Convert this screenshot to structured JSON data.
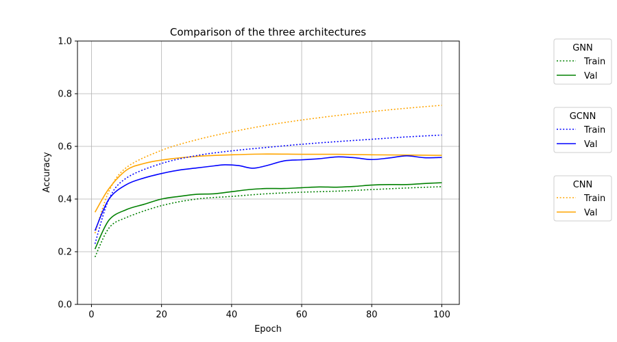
{
  "chart_data": {
    "type": "line",
    "title": "Comparison of the three architectures",
    "xlabel": "Epoch",
    "ylabel": "Accuracy",
    "xlim": [
      -4,
      105
    ],
    "ylim": [
      0.0,
      1.0
    ],
    "xticks": [
      0,
      20,
      40,
      60,
      80,
      100
    ],
    "yticks": [
      0.0,
      0.2,
      0.4,
      0.6,
      0.8,
      1.0
    ],
    "xtick_labels": [
      "0",
      "20",
      "40",
      "60",
      "80",
      "100"
    ],
    "ytick_labels": [
      "0.0",
      "0.2",
      "0.4",
      "0.6",
      "0.8",
      "1.0"
    ],
    "grid": true,
    "legend_placement": "right, outside plot",
    "legends": [
      {
        "title": "GNN",
        "entries": [
          {
            "label": "Train",
            "color": "#008000",
            "style": "dotted"
          },
          {
            "label": "Val",
            "color": "#008000",
            "style": "solid"
          }
        ]
      },
      {
        "title": "GCNN",
        "entries": [
          {
            "label": "Train",
            "color": "#0000ff",
            "style": "dotted"
          },
          {
            "label": "Val",
            "color": "#0000ff",
            "style": "solid"
          }
        ]
      },
      {
        "title": "CNN",
        "entries": [
          {
            "label": "Train",
            "color": "#ffa500",
            "style": "dotted"
          },
          {
            "label": "Val",
            "color": "#ffa500",
            "style": "solid"
          }
        ]
      }
    ],
    "series": [
      {
        "group": "CNN",
        "name": "Train",
        "color": "#ffa500",
        "style": "dotted",
        "x": [
          1,
          5,
          10,
          20,
          30,
          40,
          50,
          60,
          70,
          80,
          90,
          100
        ],
        "y": [
          0.27,
          0.43,
          0.52,
          0.585,
          0.625,
          0.655,
          0.68,
          0.7,
          0.717,
          0.732,
          0.745,
          0.756
        ]
      },
      {
        "group": "CNN",
        "name": "Val",
        "color": "#ffa500",
        "style": "solid",
        "x": [
          1,
          5,
          10,
          15,
          20,
          30,
          40,
          50,
          60,
          70,
          80,
          90,
          100
        ],
        "y": [
          0.35,
          0.44,
          0.51,
          0.535,
          0.548,
          0.562,
          0.568,
          0.571,
          0.57,
          0.57,
          0.568,
          0.567,
          0.566
        ]
      },
      {
        "group": "GCNN",
        "name": "Train",
        "color": "#0000ff",
        "style": "dotted",
        "x": [
          1,
          5,
          10,
          20,
          30,
          40,
          50,
          60,
          70,
          80,
          90,
          100
        ],
        "y": [
          0.23,
          0.4,
          0.48,
          0.535,
          0.565,
          0.583,
          0.596,
          0.608,
          0.618,
          0.627,
          0.636,
          0.643
        ]
      },
      {
        "group": "GCNN",
        "name": "Val",
        "color": "#0000ff",
        "style": "solid",
        "x": [
          1,
          5,
          10,
          15,
          20,
          25,
          30,
          35,
          38,
          42,
          46,
          50,
          55,
          60,
          65,
          70,
          75,
          80,
          85,
          90,
          95,
          100
        ],
        "y": [
          0.28,
          0.4,
          0.455,
          0.48,
          0.497,
          0.51,
          0.518,
          0.526,
          0.53,
          0.527,
          0.517,
          0.527,
          0.545,
          0.549,
          0.553,
          0.56,
          0.557,
          0.55,
          0.556,
          0.564,
          0.557,
          0.558
        ]
      },
      {
        "group": "GNN",
        "name": "Train",
        "color": "#008000",
        "style": "dotted",
        "x": [
          1,
          5,
          10,
          20,
          30,
          40,
          50,
          60,
          70,
          80,
          90,
          100
        ],
        "y": [
          0.18,
          0.29,
          0.33,
          0.375,
          0.4,
          0.41,
          0.42,
          0.426,
          0.43,
          0.436,
          0.442,
          0.447
        ]
      },
      {
        "group": "GNN",
        "name": "Val",
        "color": "#008000",
        "style": "solid",
        "x": [
          1,
          5,
          10,
          15,
          20,
          25,
          30,
          35,
          40,
          45,
          50,
          55,
          60,
          65,
          70,
          75,
          80,
          85,
          90,
          95,
          100
        ],
        "y": [
          0.21,
          0.32,
          0.36,
          0.38,
          0.4,
          0.41,
          0.418,
          0.42,
          0.428,
          0.436,
          0.44,
          0.44,
          0.443,
          0.446,
          0.445,
          0.448,
          0.453,
          0.455,
          0.455,
          0.459,
          0.462
        ]
      }
    ]
  }
}
